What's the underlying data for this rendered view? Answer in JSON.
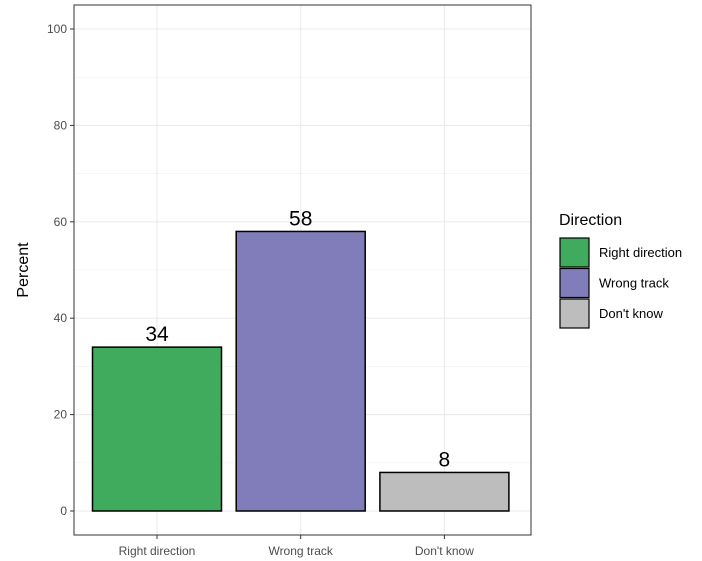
{
  "chart_data": {
    "type": "bar",
    "categories": [
      "Right direction",
      "Wrong track",
      "Don't know"
    ],
    "values": [
      34,
      58,
      8
    ],
    "colors": [
      "#41ab5d",
      "#807dba",
      "#bdbdbd"
    ],
    "ylabel": "Percent",
    "xlabel": "",
    "ylim": [
      0,
      100
    ],
    "yticks": [
      "0",
      "20",
      "40",
      "60",
      "80",
      "100"
    ],
    "data_labels": [
      "34",
      "58",
      "8"
    ],
    "grid": true,
    "legend": {
      "title": "Direction",
      "placement": "right",
      "entries": [
        "Right direction",
        "Wrong track",
        "Don't know"
      ]
    }
  }
}
